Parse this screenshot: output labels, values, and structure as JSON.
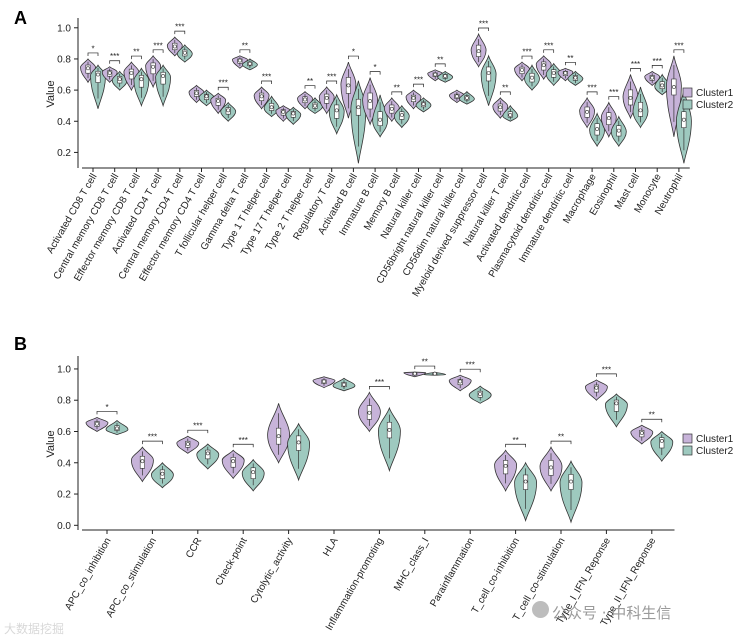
{
  "panels": [
    {
      "label": "A"
    },
    {
      "label": "B"
    }
  ],
  "colors": {
    "cluster1": "#c7b3d9",
    "cluster2": "#9ec9bf",
    "stroke": "#333333"
  },
  "watermarks": {
    "left": "大数据挖掘",
    "right": "公众号 · 中科生信"
  },
  "chart_data": [
    {
      "type": "violin",
      "panel": "A",
      "ylabel": "Value",
      "ylim": [
        0.1,
        1.05
      ],
      "yticks": [
        0.2,
        0.4,
        0.6,
        0.8,
        1.0
      ],
      "legend": {
        "position": "right",
        "entries": [
          "Cluster1",
          "Cluster2"
        ]
      },
      "categories": [
        "Activated CD8 T cell",
        "Central memory CD8 T cell",
        "Effector memory CD8 T cell",
        "Activated CD4 T cell",
        "Central memory CD4 T cell",
        "Effector memory CD4 T cell",
        "T follicular helper cell",
        "Gamma delta T cell",
        "Type 1 T helper cell",
        "Type 17 T helper cell",
        "Type 2 T helper cell",
        "Regulatory T cell",
        "Activated B cell",
        "Immature B cell",
        "Memory B cell",
        "Natural killer cell",
        "CD56bright natural killer cell",
        "CD56dim natural killer cell",
        "Myeloid derived suppressor cell",
        "Natural killer T cell",
        "Activated dendritic cell",
        "Plasmacytoid dendritic cell",
        "Immature dendritic cell",
        "Macrophage",
        "Eosinophil",
        "Mast cell",
        "Monocyte",
        "Neutrophil"
      ],
      "significance": [
        "*",
        "***",
        "**",
        "***",
        "***",
        "",
        "***",
        "**",
        "***",
        "",
        "**",
        "***",
        "*",
        "*",
        "**",
        "***",
        "**",
        "",
        "***",
        "**",
        "***",
        "***",
        "**",
        "***",
        "***",
        "***",
        "***",
        "***"
      ],
      "series": [
        {
          "name": "Cluster1",
          "median": [
            0.74,
            0.71,
            0.71,
            0.75,
            0.88,
            0.58,
            0.53,
            0.79,
            0.56,
            0.46,
            0.54,
            0.55,
            0.63,
            0.53,
            0.48,
            0.55,
            0.7,
            0.56,
            0.85,
            0.49,
            0.73,
            0.76,
            0.71,
            0.46,
            0.42,
            0.55,
            0.68,
            0.62
          ],
          "min": [
            0.65,
            0.65,
            0.6,
            0.62,
            0.82,
            0.52,
            0.45,
            0.74,
            0.48,
            0.4,
            0.48,
            0.45,
            0.42,
            0.38,
            0.4,
            0.48,
            0.66,
            0.52,
            0.75,
            0.42,
            0.66,
            0.67,
            0.66,
            0.36,
            0.3,
            0.42,
            0.63,
            0.3
          ],
          "max": [
            0.8,
            0.75,
            0.78,
            0.82,
            0.94,
            0.63,
            0.58,
            0.82,
            0.62,
            0.5,
            0.59,
            0.62,
            0.78,
            0.68,
            0.55,
            0.6,
            0.73,
            0.6,
            0.96,
            0.55,
            0.78,
            0.82,
            0.74,
            0.55,
            0.52,
            0.7,
            0.72,
            0.82
          ]
        },
        {
          "name": "Cluster2",
          "median": [
            0.7,
            0.67,
            0.67,
            0.69,
            0.84,
            0.56,
            0.47,
            0.77,
            0.49,
            0.45,
            0.5,
            0.47,
            0.49,
            0.41,
            0.44,
            0.51,
            0.69,
            0.55,
            0.71,
            0.44,
            0.68,
            0.71,
            0.68,
            0.35,
            0.34,
            0.47,
            0.63,
            0.41
          ],
          "min": [
            0.48,
            0.6,
            0.5,
            0.5,
            0.78,
            0.5,
            0.4,
            0.73,
            0.43,
            0.38,
            0.45,
            0.32,
            0.13,
            0.3,
            0.36,
            0.46,
            0.65,
            0.51,
            0.5,
            0.4,
            0.6,
            0.63,
            0.63,
            0.24,
            0.24,
            0.36,
            0.57,
            0.13
          ],
          "max": [
            0.76,
            0.72,
            0.74,
            0.76,
            0.89,
            0.6,
            0.52,
            0.8,
            0.56,
            0.49,
            0.55,
            0.57,
            0.66,
            0.57,
            0.5,
            0.55,
            0.72,
            0.59,
            0.82,
            0.5,
            0.76,
            0.77,
            0.72,
            0.45,
            0.43,
            0.62,
            0.7,
            0.6
          ]
        }
      ]
    },
    {
      "type": "violin",
      "panel": "B",
      "ylabel": "Value",
      "ylim": [
        -0.03,
        1.07
      ],
      "yticks": [
        0.0,
        0.2,
        0.4,
        0.6,
        0.8,
        1.0
      ],
      "legend": {
        "position": "right",
        "entries": [
          "Cluster1",
          "Cluster2"
        ]
      },
      "categories": [
        "APC_co_inhibition",
        "APC_co_stimulation",
        "CCR",
        "Check-point",
        "Cytolytic_activity",
        "HLA",
        "Inflammation-promoting",
        "MHC_class_I",
        "Parainflammation",
        "T_cell_co-inhibition",
        "T_cell_co-stimulation",
        "Type_I_IFN_Reponse",
        "Type_II_IFN_Reponse"
      ],
      "significance": [
        "*",
        "***",
        "***",
        "***",
        "",
        "",
        "***",
        "**",
        "***",
        "**",
        "**",
        "***",
        "**"
      ],
      "series": [
        {
          "name": "Cluster1",
          "median": [
            0.65,
            0.41,
            0.52,
            0.41,
            0.57,
            0.92,
            0.72,
            0.97,
            0.92,
            0.38,
            0.37,
            0.88,
            0.59
          ],
          "min": [
            0.6,
            0.28,
            0.46,
            0.3,
            0.4,
            0.88,
            0.6,
            0.95,
            0.86,
            0.22,
            0.22,
            0.8,
            0.52
          ],
          "max": [
            0.69,
            0.5,
            0.57,
            0.48,
            0.78,
            0.95,
            0.85,
            0.98,
            0.96,
            0.48,
            0.5,
            0.93,
            0.64
          ]
        },
        {
          "name": "Cluster2",
          "median": [
            0.62,
            0.33,
            0.46,
            0.34,
            0.53,
            0.9,
            0.61,
            0.97,
            0.84,
            0.28,
            0.28,
            0.78,
            0.54
          ],
          "min": [
            0.58,
            0.24,
            0.36,
            0.22,
            0.29,
            0.86,
            0.35,
            0.96,
            0.78,
            0.03,
            0.02,
            0.63,
            0.41
          ],
          "max": [
            0.67,
            0.4,
            0.52,
            0.42,
            0.65,
            0.94,
            0.75,
            0.98,
            0.89,
            0.4,
            0.41,
            0.84,
            0.6
          ]
        }
      ]
    }
  ]
}
